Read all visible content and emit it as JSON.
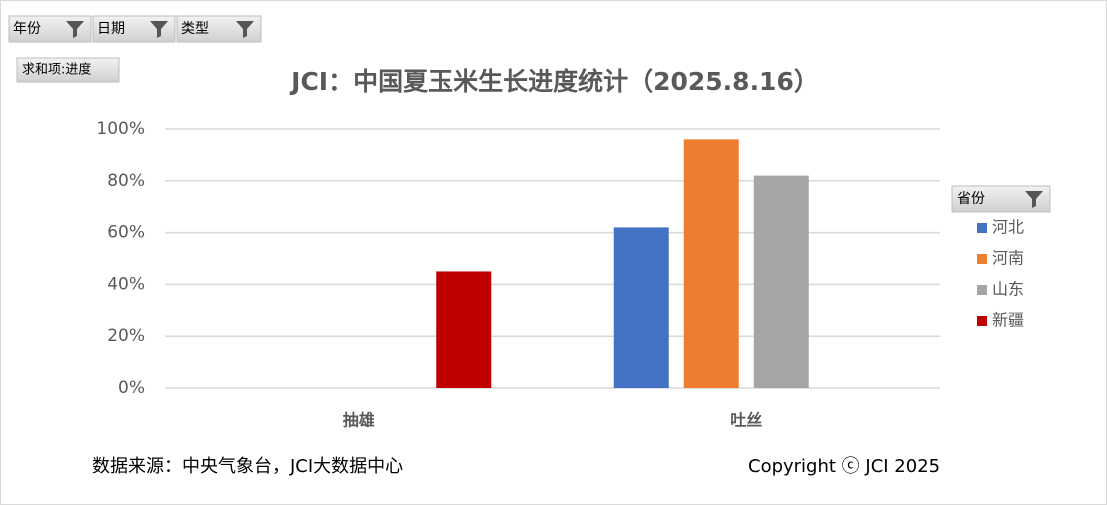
{
  "pivot_filters": [
    "年份",
    "日期",
    "类型"
  ],
  "value_field": "求和项:进度",
  "chart_data": {
    "type": "bar",
    "title": "JCI：中国夏玉米生长进度统计（2025.8.16）",
    "categories": [
      "抽雄",
      "吐丝"
    ],
    "series": [
      {
        "name": "河北",
        "color": "#4472c4",
        "values": [
          null,
          62
        ]
      },
      {
        "name": "河南",
        "color": "#ed7d31",
        "values": [
          null,
          96
        ]
      },
      {
        "name": "山东",
        "color": "#a5a5a5",
        "values": [
          null,
          82
        ]
      },
      {
        "name": "新疆",
        "color": "#c00000",
        "values": [
          45,
          null
        ]
      }
    ],
    "ylim": [
      0,
      100
    ],
    "yticks": [
      {
        "value": 0,
        "label": "0%"
      },
      {
        "value": 20,
        "label": "20%"
      },
      {
        "value": 40,
        "label": "40%"
      },
      {
        "value": 60,
        "label": "60%"
      },
      {
        "value": 80,
        "label": "80%"
      },
      {
        "value": 100,
        "label": "100%"
      }
    ],
    "grid": true,
    "legend_title": "省份",
    "legend_position": "right",
    "source": "数据来源：中央气象台，JCI大数据中心",
    "copyright": "Copyright ⓒ JCI 2025"
  }
}
